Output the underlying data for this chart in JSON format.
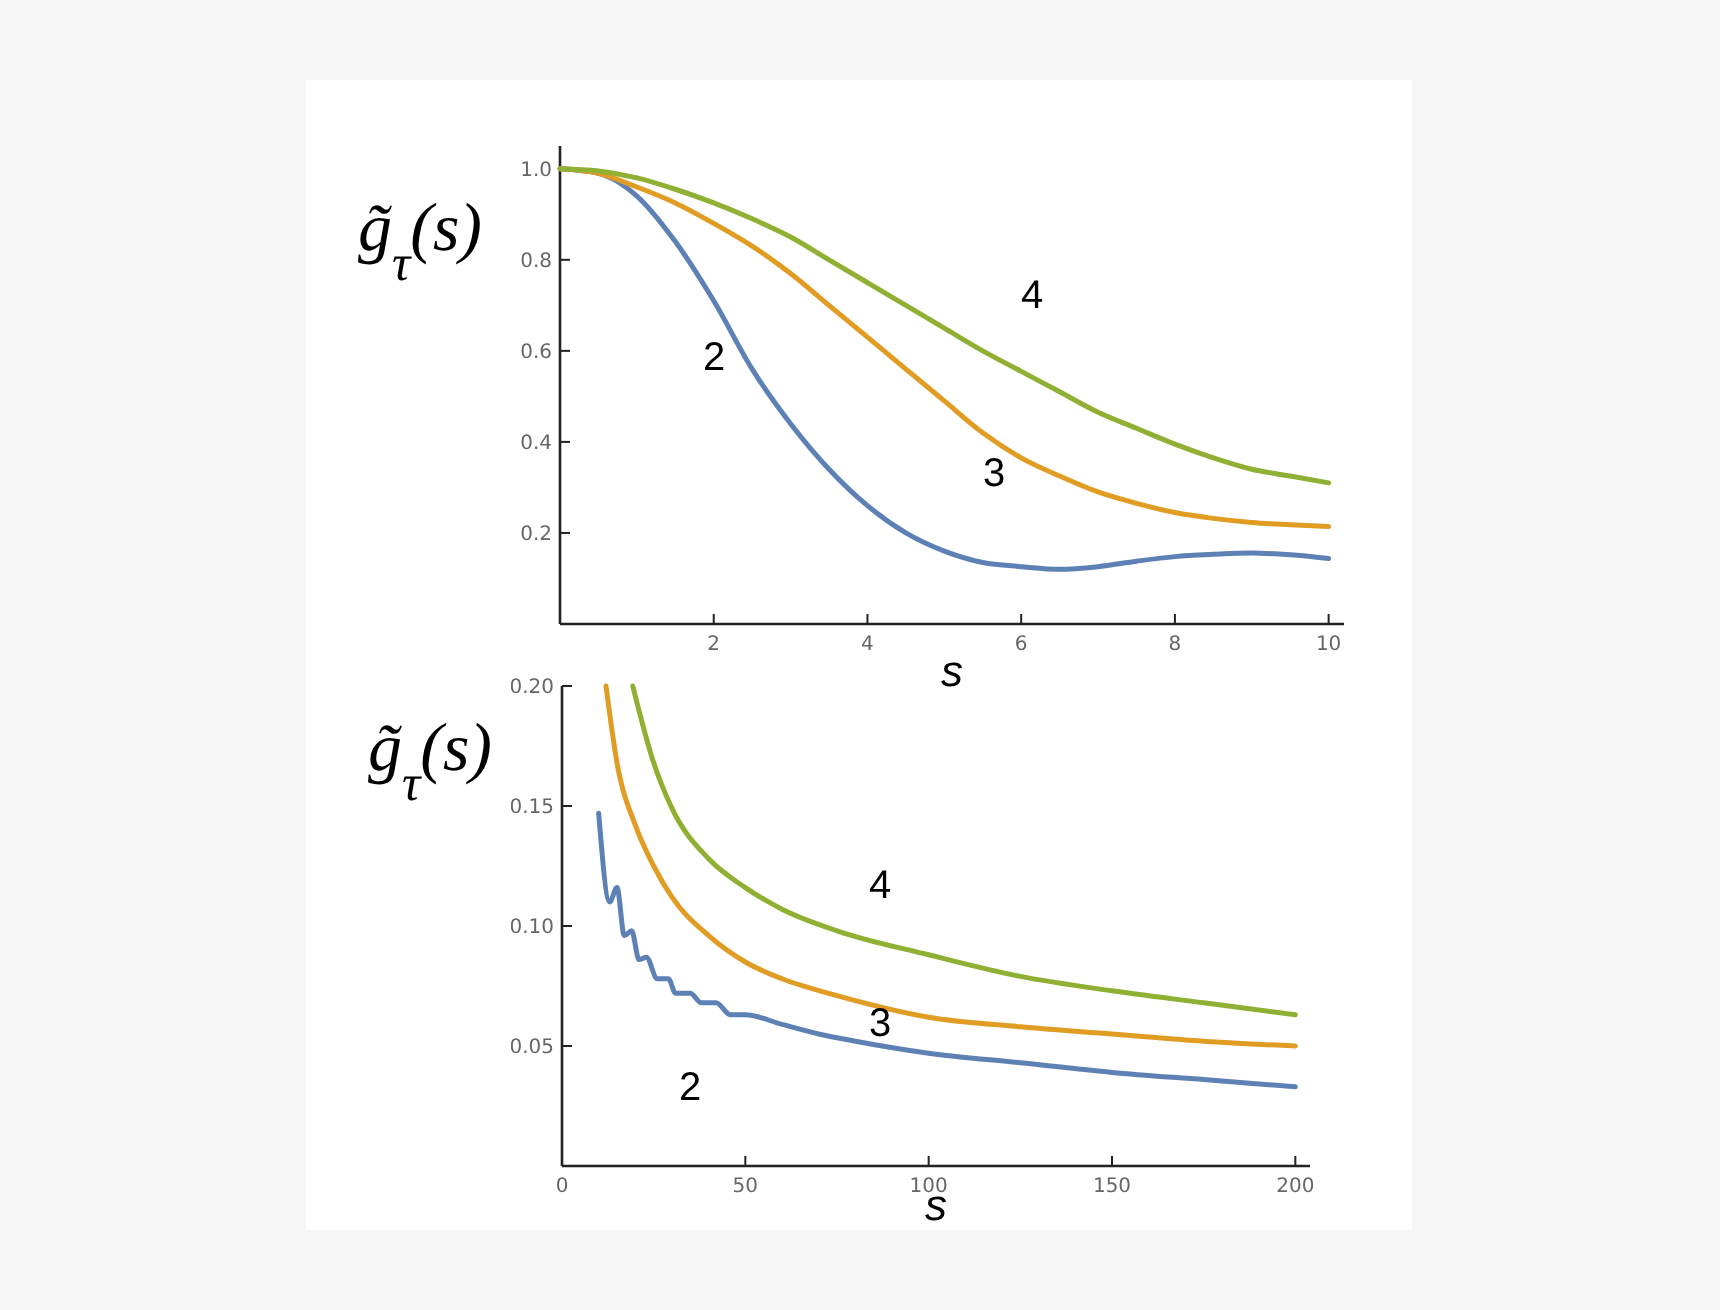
{
  "chart_data": [
    {
      "type": "line",
      "xlabel": "s",
      "ylabel": "g̃$_{τ}$(s)",
      "xlim": [
        0,
        10.2
      ],
      "ylim": [
        0,
        1.05
      ],
      "xticks": [
        2,
        4,
        6,
        8,
        10
      ],
      "yticks": [
        {
          "value": 0.2,
          "label": "0.2"
        },
        {
          "value": 0.4,
          "label": "0.4"
        },
        {
          "value": 0.6,
          "label": "0.6"
        },
        {
          "value": 0.8,
          "label": "0.8"
        },
        {
          "value": 1,
          "label": "1.0"
        }
      ],
      "series": [
        {
          "name": "2",
          "color": "#5e81b5",
          "x": [
            0,
            0.5,
            1,
            1.5,
            2,
            2.5,
            3,
            3.5,
            4,
            4.5,
            5,
            5.5,
            6,
            6.5,
            7,
            7.5,
            8,
            8.5,
            9,
            9.5,
            10
          ],
          "values": [
            1,
            0.99,
            0.94,
            0.84,
            0.71,
            0.56,
            0.44,
            0.34,
            0.26,
            0.2,
            0.16,
            0.135,
            0.126,
            0.12,
            0.126,
            0.138,
            0.148,
            0.153,
            0.156,
            0.152,
            0.144
          ]
        },
        {
          "name": "3",
          "color": "#e19c24",
          "x": [
            0,
            0.5,
            1,
            1.5,
            2,
            2.5,
            3,
            3.5,
            4,
            4.5,
            5,
            5.5,
            6,
            6.5,
            7,
            7.5,
            8,
            8.5,
            9,
            9.5,
            10
          ],
          "values": [
            1,
            0.99,
            0.96,
            0.925,
            0.88,
            0.83,
            0.77,
            0.7,
            0.63,
            0.56,
            0.49,
            0.42,
            0.365,
            0.325,
            0.29,
            0.265,
            0.245,
            0.232,
            0.223,
            0.218,
            0.214
          ]
        },
        {
          "name": "4",
          "color": "#8fb032",
          "x": [
            0,
            0.5,
            1,
            1.5,
            2,
            2.5,
            3,
            3.5,
            4,
            4.5,
            5,
            5.5,
            6,
            6.5,
            7,
            7.5,
            8,
            8.5,
            9,
            9.5,
            10
          ],
          "values": [
            1,
            0.995,
            0.98,
            0.955,
            0.925,
            0.89,
            0.85,
            0.8,
            0.75,
            0.7,
            0.65,
            0.6,
            0.555,
            0.51,
            0.465,
            0.43,
            0.395,
            0.365,
            0.34,
            0.325,
            0.31
          ]
        }
      ]
    },
    {
      "type": "line",
      "xlabel": "s",
      "ylabel": "g̃$_{τ}$(s)",
      "xlim": [
        0,
        204
      ],
      "ylim": [
        0,
        0.2
      ],
      "xticks": [
        0,
        50,
        100,
        150,
        200
      ],
      "yticks": [
        0.05,
        {
          "value": 0.1,
          "label": "0.10"
        },
        0.15,
        {
          "value": 0.2,
          "label": "0.20"
        }
      ],
      "series": [
        {
          "name": "2",
          "color": "#5e81b5",
          "x": [
            10,
            13,
            15,
            17,
            19,
            21,
            23,
            26,
            29,
            31,
            35,
            38,
            42,
            46,
            50,
            60,
            70,
            80,
            100,
            125,
            150,
            175,
            200
          ],
          "values": [
            0.147,
            0.11,
            0.116,
            0.096,
            0.098,
            0.086,
            0.087,
            0.078,
            0.078,
            0.072,
            0.072,
            0.068,
            0.068,
            0.063,
            0.063,
            0.059,
            0.055,
            0.052,
            0.047,
            0.043,
            0.039,
            0.036,
            0.033
          ]
        },
        {
          "name": "3",
          "color": "#e19c24",
          "x": [
            12,
            15,
            20,
            25,
            30,
            40,
            50,
            60,
            75,
            100,
            125,
            150,
            175,
            200
          ],
          "values": [
            0.2,
            0.168,
            0.142,
            0.125,
            0.112,
            0.096,
            0.085,
            0.078,
            0.071,
            0.062,
            0.058,
            0.055,
            0.052,
            0.05
          ]
        },
        {
          "name": "4",
          "color": "#8fb032",
          "x": [
            19.3,
            25,
            30,
            40,
            50,
            60,
            75,
            100,
            125,
            150,
            175,
            200
          ],
          "values": [
            0.2,
            0.168,
            0.149,
            0.128,
            0.116,
            0.107,
            0.098,
            0.088,
            0.079,
            0.073,
            0.068,
            0.063
          ]
        }
      ]
    }
  ]
}
